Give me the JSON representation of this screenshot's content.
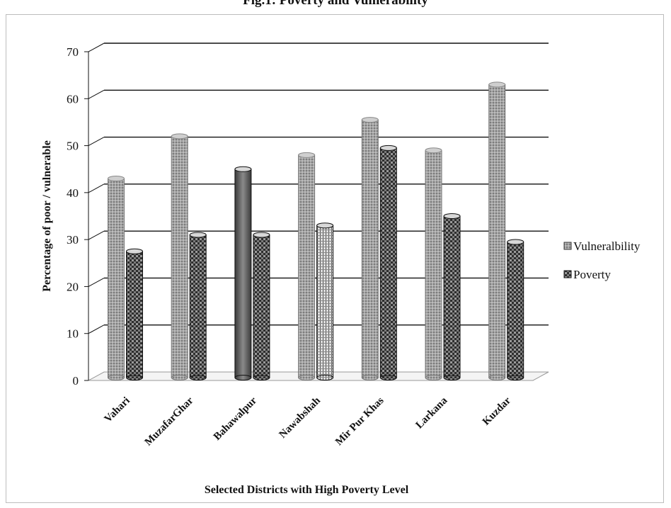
{
  "chart_data": {
    "type": "bar",
    "title": "Fig.1: Poverty and Vulnerability",
    "xlabel": "Selected Districts with High Poverty Level",
    "ylabel": "Percentage of poor / vulnerable",
    "categories": [
      "Vahari",
      "MuzafarGhar",
      "Bahawalpur",
      "Nawabshah",
      "Mir Pur Khas",
      "Larkana",
      "Kuzdar"
    ],
    "series": [
      {
        "name": "Vulneralbility",
        "values": [
          43,
          52,
          45,
          48,
          55.5,
          49,
          63
        ]
      },
      {
        "name": "Poverty",
        "values": [
          27.5,
          31,
          31,
          33,
          49.5,
          35,
          29.5
        ]
      }
    ],
    "ylim": [
      0,
      70
    ],
    "yticks": [
      0,
      10,
      20,
      30,
      40,
      50,
      60,
      70
    ],
    "grid": true,
    "legend": "right",
    "colors": {
      "vulnerability": "#9a9a9a",
      "poverty": "#4a4a4a",
      "bahawalpur_vulnerability": "#6f6f6f",
      "gridline": "#111111"
    }
  }
}
